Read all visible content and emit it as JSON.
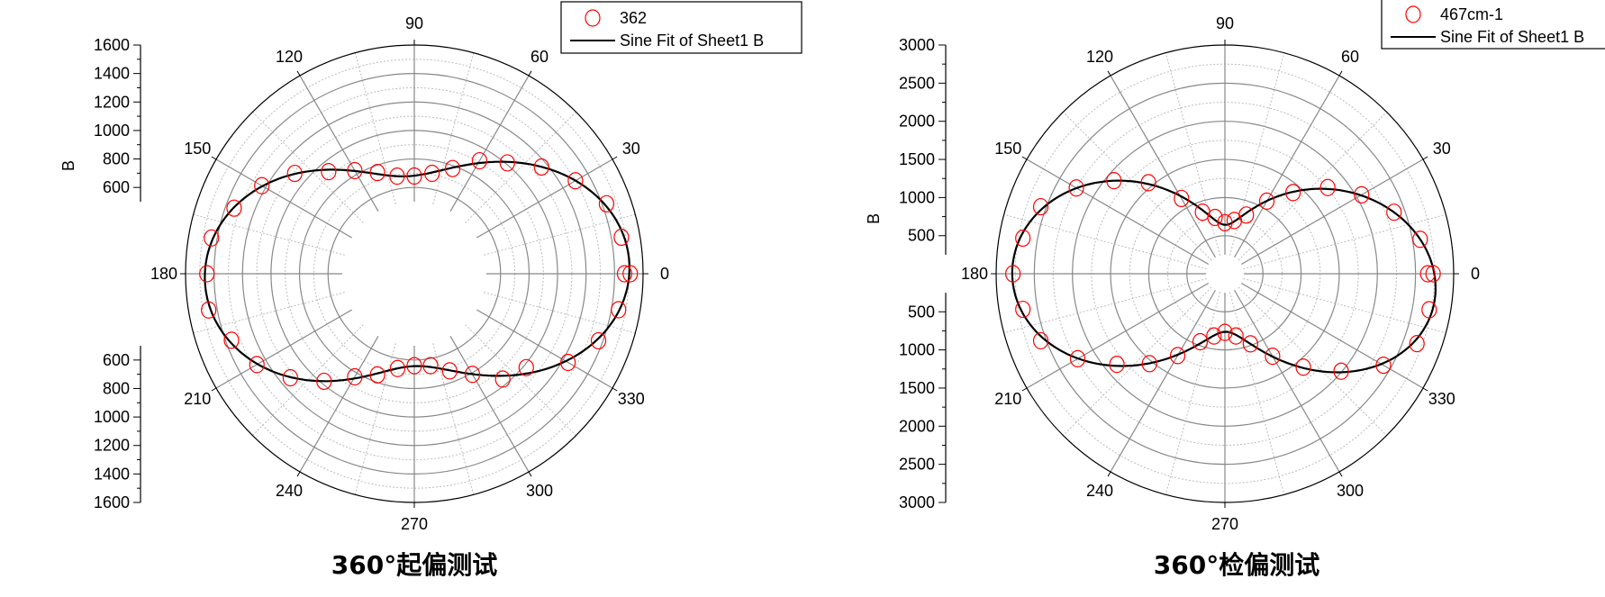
{
  "chart_data": [
    {
      "type": "scatter",
      "coordinate_system": "polar",
      "title": "360°起偏测试",
      "radial_label": "B",
      "radial_range": [
        500,
        1600
      ],
      "radial_ticks": [
        600,
        800,
        1000,
        1200,
        1400,
        1600
      ],
      "radial_minor_step": 100,
      "angular_ticks": [
        0,
        30,
        60,
        90,
        120,
        150,
        180,
        210,
        240,
        270,
        300,
        330
      ],
      "grid": true,
      "legend_position": "top-right",
      "series": [
        {
          "name": "362",
          "marker": "open-circle",
          "color": "#ff0000",
          "theta": [
            0,
            10,
            20,
            30,
            40,
            50,
            60,
            70,
            80,
            90,
            100,
            110,
            120,
            130,
            140,
            150,
            160,
            170,
            180,
            190,
            200,
            210,
            220,
            230,
            240,
            250,
            260,
            270,
            280,
            290,
            300,
            310,
            320,
            330,
            340,
            350,
            360
          ],
          "r": [
            1510,
            1470,
            1430,
            1300,
            1160,
            1010,
            910,
            780,
            710,
            680,
            690,
            750,
            830,
            930,
            1090,
            1230,
            1340,
            1440,
            1450,
            1460,
            1360,
            1270,
            1130,
            980,
            830,
            750,
            670,
            640,
            650,
            720,
            810,
            960,
            1020,
            1240,
            1370,
            1450,
            1470
          ]
        },
        {
          "name": "Sine Fit of Sheet1 B",
          "type": "line",
          "color": "#000000"
        }
      ]
    },
    {
      "type": "scatter",
      "coordinate_system": "polar",
      "title": "360°检偏测试",
      "radial_label": "B",
      "radial_range": [
        250,
        3000
      ],
      "radial_ticks": [
        500,
        1000,
        1500,
        2000,
        2500,
        3000
      ],
      "radial_minor_step": 250,
      "angular_ticks": [
        0,
        30,
        60,
        90,
        120,
        150,
        180,
        210,
        240,
        270,
        300,
        330
      ],
      "grid": true,
      "legend_position": "top-right",
      "series": [
        {
          "name": "467cm-1",
          "marker": "open-circle",
          "color": "#ff0000",
          "theta": [
            0,
            10,
            20,
            30,
            40,
            50,
            60,
            70,
            80,
            90,
            100,
            110,
            120,
            130,
            140,
            150,
            160,
            170,
            180,
            190,
            200,
            210,
            220,
            230,
            240,
            250,
            260,
            270,
            280,
            290,
            300,
            310,
            320,
            330,
            340,
            350,
            360
          ],
          "r": [
            2730,
            2600,
            2360,
            2070,
            1760,
            1390,
            1100,
            820,
            710,
            670,
            750,
            860,
            1140,
            1560,
            1900,
            2250,
            2570,
            2690,
            2780,
            2690,
            2570,
            2230,
            1850,
            1540,
            1240,
            950,
            830,
            770,
            830,
            980,
            1250,
            1600,
            1990,
            2400,
            2680,
            2720,
            2660
          ]
        },
        {
          "name": "Sine Fit of Sheet1 B",
          "type": "line",
          "color": "#000000"
        }
      ]
    }
  ]
}
